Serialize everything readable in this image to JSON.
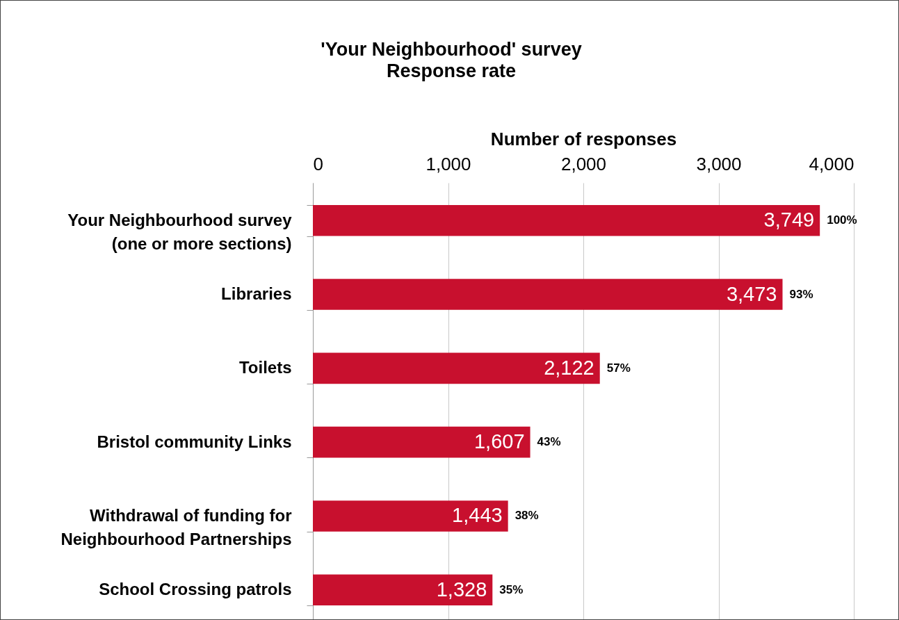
{
  "chart_data": {
    "type": "bar",
    "orientation": "horizontal",
    "title": "'Your Neighbourhood' survey",
    "subtitle": "Response rate",
    "xlabel": "Number of responses",
    "categories": [
      "Your Neighbourhood survey (one or more sections)",
      "Libraries",
      "Toilets",
      "Bristol community Links",
      "Withdrawal of funding for Neighbourhood Partnerships",
      "School Crossing patrols"
    ],
    "values": [
      3749,
      3473,
      2122,
      1607,
      1443,
      1328
    ],
    "color": "#c8102e",
    "xlim": [
      0,
      4000
    ],
    "xticks": [
      0,
      {
        "value": 1000,
        "label": "1,000"
      },
      {
        "value": 2000,
        "label": "2,000"
      },
      {
        "value": 3000,
        "label": "3,000"
      },
      {
        "value": 4000,
        "label": "4,000"
      }
    ],
    "grid": "x",
    "value_labels": [
      "3,749",
      "3,473",
      "2,122",
      "1,607",
      "1,443",
      "1,328"
    ],
    "annotations": [
      {
        "text": "100%",
        "x": 3749,
        "y": "Your Neighbourhood survey (one or more sections)"
      },
      {
        "text": "93%",
        "x": 3473,
        "y": "Libraries"
      },
      {
        "text": "57%",
        "x": 2122,
        "y": "Toilets"
      },
      {
        "text": "43%",
        "x": 1607,
        "y": "Bristol community Links"
      },
      {
        "text": "38%",
        "x": 1443,
        "y": "Withdrawal of funding for Neighbourhood Partnerships"
      },
      {
        "text": "35%",
        "x": 1328,
        "y": "School Crossing patrols"
      }
    ]
  }
}
